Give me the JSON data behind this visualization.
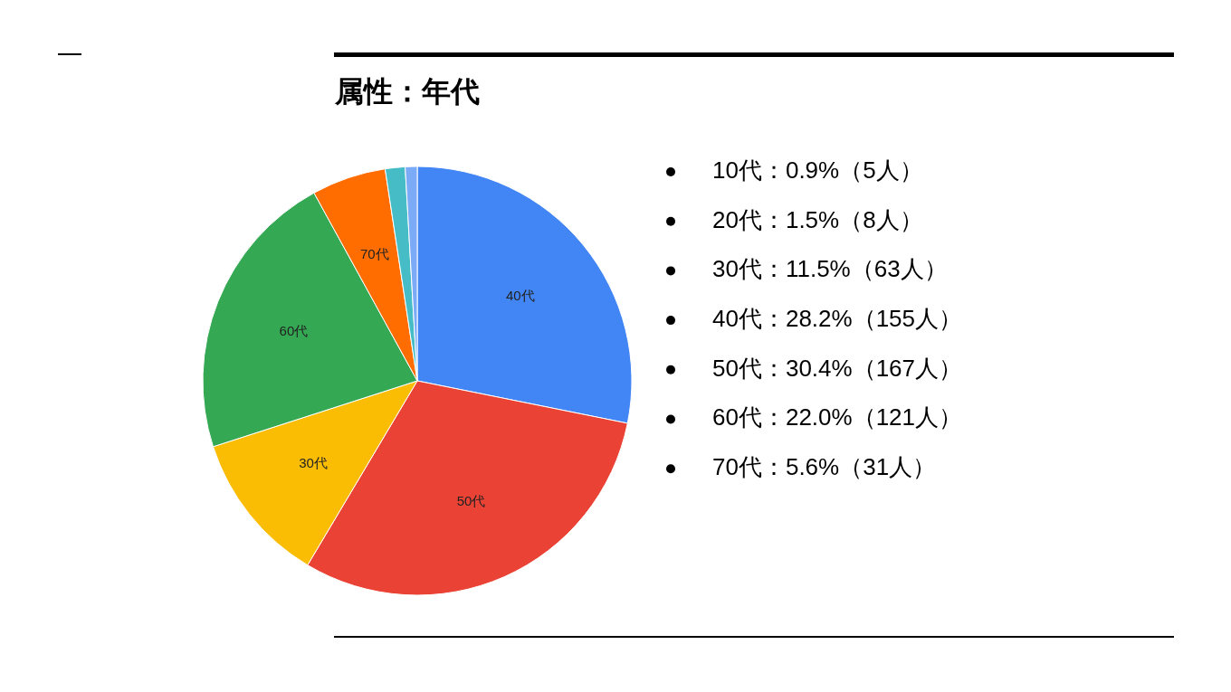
{
  "chart_data": {
    "type": "pie",
    "title": "属性：年代",
    "categories": [
      "40代",
      "50代",
      "30代",
      "60代",
      "70代",
      null,
      null
    ],
    "values": [
      28.2,
      30.4,
      11.5,
      22.0,
      5.6,
      1.5,
      0.9
    ],
    "colors": [
      "#4285f4",
      "#ea4335",
      "#fbbc04",
      "#34a853",
      "#ff6d01",
      "#46bdc6",
      "#7baaf7"
    ],
    "annotations": [
      "10代：0.9%（5人）",
      "20代：1.5%（8人）",
      "30代：11.5%（63人）",
      "40代：28.2%（155人）",
      "50代：30.4%（167人）",
      "60代：22.0%（121人）",
      "70代：5.6%（31人）"
    ]
  }
}
